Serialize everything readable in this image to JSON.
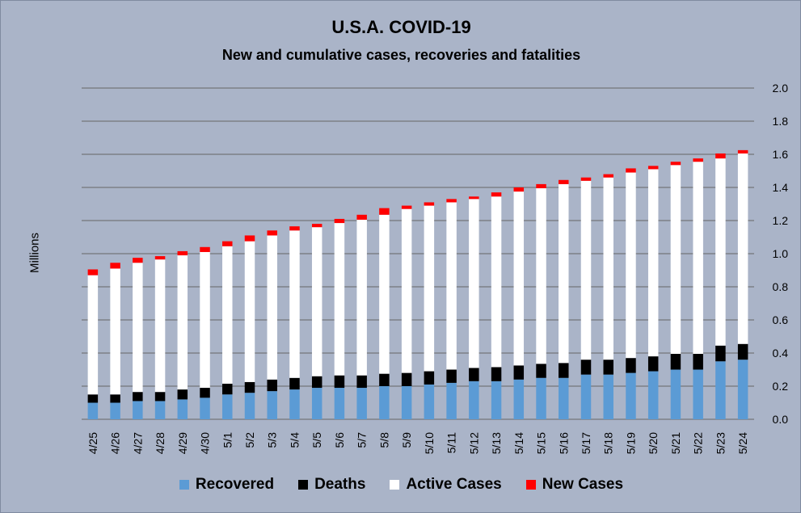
{
  "colors": {
    "background": "#aab4c8",
    "grid": "#666666",
    "recovered": "#5b9bd5",
    "deaths": "#000000",
    "active": "#ffffff",
    "new_cases": "#ff0000"
  },
  "chart_data": {
    "type": "bar",
    "stacked": true,
    "title": "U.S.A. COVID-19",
    "subtitle": "New and cumulative cases, recoveries and fatalities",
    "xlabel": "",
    "ylabel": "Millions",
    "ylim": [
      0,
      2.0
    ],
    "yticks": [
      "0.0",
      "0.2",
      "0.4",
      "0.6",
      "0.8",
      "1.0",
      "1.2",
      "1.4",
      "1.6",
      "1.8",
      "2.0"
    ],
    "grid": true,
    "legend_position": "bottom",
    "categories": [
      "4/25",
      "4/26",
      "4/27",
      "4/28",
      "4/29",
      "4/30",
      "5/1",
      "5/2",
      "5/3",
      "5/4",
      "5/5",
      "5/6",
      "5/7",
      "5/8",
      "5/9",
      "5/10",
      "5/11",
      "5/12",
      "5/13",
      "5/14",
      "5/15",
      "5/16",
      "5/17",
      "5/18",
      "5/19",
      "5/20",
      "5/21",
      "5/22",
      "5/23",
      "5/24"
    ],
    "series": [
      {
        "name": "Recovered",
        "color": "#5b9bd5",
        "values": [
          0.1,
          0.1,
          0.11,
          0.11,
          0.12,
          0.13,
          0.15,
          0.16,
          0.17,
          0.18,
          0.19,
          0.19,
          0.19,
          0.2,
          0.2,
          0.21,
          0.22,
          0.23,
          0.23,
          0.24,
          0.25,
          0.25,
          0.27,
          0.27,
          0.28,
          0.29,
          0.3,
          0.3,
          0.35,
          0.36
        ]
      },
      {
        "name": "Deaths",
        "color": "#000000",
        "values": [
          0.05,
          0.05,
          0.055,
          0.055,
          0.06,
          0.06,
          0.065,
          0.065,
          0.07,
          0.07,
          0.07,
          0.075,
          0.075,
          0.075,
          0.08,
          0.08,
          0.08,
          0.08,
          0.085,
          0.085,
          0.085,
          0.09,
          0.09,
          0.09,
          0.09,
          0.09,
          0.095,
          0.095,
          0.095,
          0.095
        ]
      },
      {
        "name": "Active Cases",
        "color": "#ffffff",
        "values": [
          0.72,
          0.76,
          0.78,
          0.8,
          0.81,
          0.82,
          0.83,
          0.85,
          0.87,
          0.89,
          0.9,
          0.92,
          0.94,
          0.96,
          0.99,
          1.0,
          1.01,
          1.02,
          1.03,
          1.05,
          1.06,
          1.08,
          1.08,
          1.1,
          1.12,
          1.13,
          1.14,
          1.16,
          1.13,
          1.15
        ]
      },
      {
        "name": "New Cases",
        "color": "#ff0000",
        "values": [
          0.035,
          0.035,
          0.03,
          0.02,
          0.025,
          0.03,
          0.03,
          0.035,
          0.03,
          0.025,
          0.02,
          0.025,
          0.03,
          0.04,
          0.02,
          0.02,
          0.02,
          0.015,
          0.025,
          0.025,
          0.025,
          0.025,
          0.02,
          0.02,
          0.025,
          0.02,
          0.02,
          0.02,
          0.03,
          0.02
        ]
      }
    ]
  }
}
